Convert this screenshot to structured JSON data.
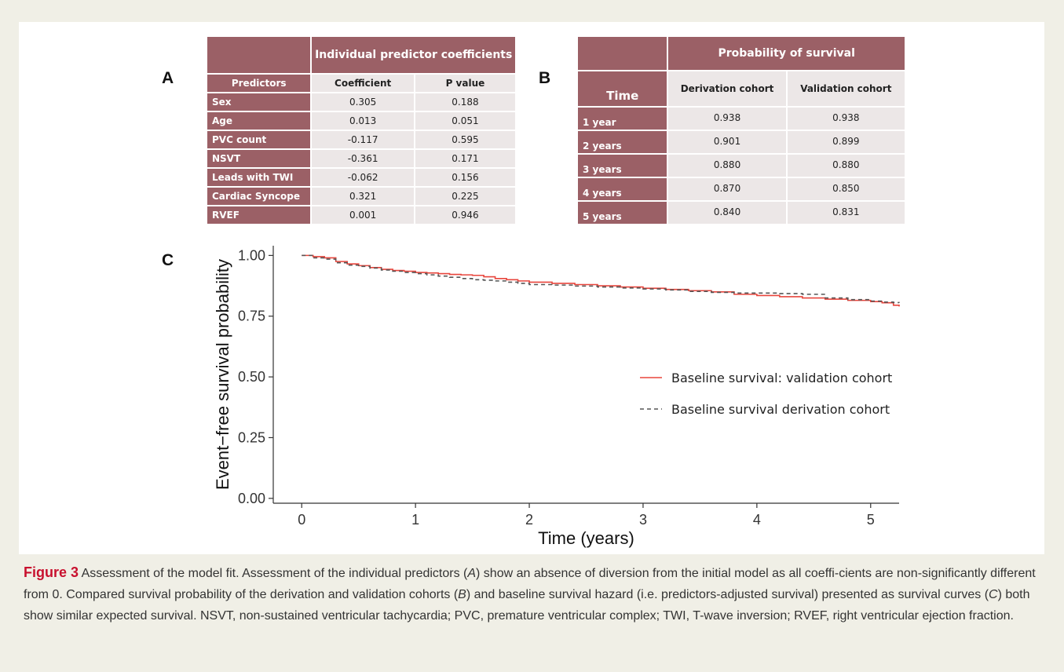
{
  "panelA": {
    "letter": "A",
    "group_header": "Individual predictor coefficients",
    "col_predictors": "Predictors",
    "col_coefficient": "Coefficient",
    "col_pvalue": "P value",
    "rows": [
      {
        "name": "Sex",
        "coef": "0.305",
        "p": "0.188"
      },
      {
        "name": "Age",
        "coef": "0.013",
        "p": "0.051"
      },
      {
        "name": "PVC count",
        "coef": "-0.117",
        "p": "0.595"
      },
      {
        "name": "NSVT",
        "coef": "-0.361",
        "p": "0.171"
      },
      {
        "name": "Leads with TWI",
        "coef": "-0.062",
        "p": "0.156"
      },
      {
        "name": "Cardiac Syncope",
        "coef": "0.321",
        "p": "0.225"
      },
      {
        "name": "RVEF",
        "coef": "0.001",
        "p": "0.946"
      }
    ]
  },
  "panelB": {
    "letter": "B",
    "group_header": "Probability of survival",
    "col_time": "Time",
    "col_derivation": "Derivation cohort",
    "col_validation": "Validation cohort",
    "rows": [
      {
        "time": "1 year",
        "der": "0.938",
        "val": "0.938"
      },
      {
        "time": "2 years",
        "der": "0.901",
        "val": "0.899"
      },
      {
        "time": "3 years",
        "der": "0.880",
        "val": "0.880"
      },
      {
        "time": "4 years",
        "der": "0.870",
        "val": "0.850"
      },
      {
        "time": "5 years",
        "der": "0.840",
        "val": "0.831"
      }
    ]
  },
  "panelC": {
    "letter": "C"
  },
  "chart_data": {
    "type": "line",
    "xlabel": "Time (years)",
    "ylabel": "Event−free survival probability",
    "xlim": [
      -0.25,
      5.25
    ],
    "ylim": [
      -0.02,
      1.04
    ],
    "xticks": [
      "0",
      "1",
      "2",
      "3",
      "4",
      "5"
    ],
    "yticks": [
      "0.00",
      "0.25",
      "0.50",
      "0.75",
      "1.00"
    ],
    "grid": false,
    "legend_position": "center-right",
    "series": [
      {
        "name": "Baseline survival: validation cohort",
        "color": "#e8453c",
        "style": "solid",
        "x": [
          0,
          0.1,
          0.2,
          0.3,
          0.4,
          0.5,
          0.6,
          0.7,
          0.8,
          0.9,
          1.0,
          1.1,
          1.2,
          1.3,
          1.4,
          1.5,
          1.6,
          1.7,
          1.8,
          1.9,
          2.0,
          2.2,
          2.4,
          2.6,
          2.8,
          3.0,
          3.2,
          3.4,
          3.6,
          3.8,
          4.0,
          4.2,
          4.4,
          4.6,
          4.8,
          5.0,
          5.1,
          5.2,
          5.25
        ],
        "y": [
          1.0,
          0.995,
          0.99,
          0.975,
          0.965,
          0.958,
          0.95,
          0.943,
          0.938,
          0.935,
          0.93,
          0.928,
          0.925,
          0.922,
          0.92,
          0.918,
          0.912,
          0.905,
          0.9,
          0.895,
          0.89,
          0.885,
          0.88,
          0.875,
          0.87,
          0.865,
          0.86,
          0.855,
          0.85,
          0.84,
          0.835,
          0.83,
          0.825,
          0.82,
          0.815,
          0.81,
          0.805,
          0.795,
          0.79
        ]
      },
      {
        "name": "Baseline survival derivation cohort",
        "color": "#555555",
        "style": "dashed",
        "x": [
          0,
          0.1,
          0.2,
          0.3,
          0.4,
          0.5,
          0.6,
          0.7,
          0.8,
          0.9,
          1.0,
          1.1,
          1.2,
          1.3,
          1.4,
          1.5,
          1.6,
          1.7,
          1.8,
          1.9,
          2.0,
          2.2,
          2.4,
          2.6,
          2.8,
          3.0,
          3.2,
          3.4,
          3.6,
          3.8,
          4.0,
          4.2,
          4.4,
          4.6,
          4.8,
          5.0,
          5.1,
          5.2,
          5.25
        ],
        "y": [
          1.0,
          0.99,
          0.985,
          0.97,
          0.96,
          0.955,
          0.948,
          0.94,
          0.935,
          0.93,
          0.925,
          0.92,
          0.915,
          0.91,
          0.905,
          0.9,
          0.898,
          0.895,
          0.89,
          0.885,
          0.88,
          0.878,
          0.874,
          0.87,
          0.866,
          0.862,
          0.858,
          0.852,
          0.848,
          0.845,
          0.845,
          0.843,
          0.84,
          0.825,
          0.818,
          0.812,
          0.808,
          0.806,
          0.805
        ]
      }
    ]
  },
  "caption": {
    "label": "Figure 3",
    "part1": " Assessment of the model fit. Assessment of the individual predictors (",
    "refA": "A",
    "part2": ") show an absence of diversion from the initial model as all coeffi-cients are non-significantly different from 0. Compared survival probability of the derivation and validation cohorts (",
    "refB": "B",
    "part3": ") and baseline survival hazard (i.e. predictors-adjusted survival) presented as survival curves (",
    "refC": "C",
    "part4": ") both show similar expected survival. NSVT, non-sustained ventricular tachycardia; PVC, premature ventricular complex; TWI, T-wave inversion; RVEF, right ventricular ejection fraction."
  }
}
